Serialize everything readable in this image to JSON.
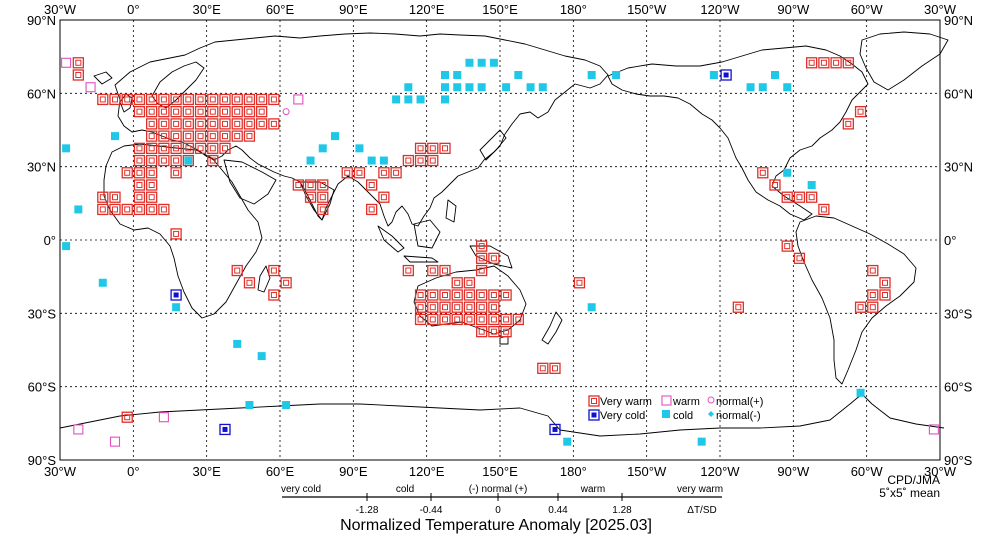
{
  "map": {
    "credit": "CPD/JMA",
    "resolution": "5˚x5˚ mean",
    "top_lon_labels": [
      "30°W",
      "0°",
      "30°E",
      "60°E",
      "90°E",
      "120°E",
      "150°E",
      "180°",
      "150°W",
      "120°W",
      "90°W",
      "60°W",
      "30°W"
    ],
    "bottom_lon_labels": [
      "30°W",
      "0°",
      "30°E",
      "60°E",
      "90°E",
      "120°E",
      "150°E",
      "180°",
      "150°W",
      "120°W",
      "90°W",
      "60°W",
      "30°W"
    ],
    "lat_labels": [
      "90°N",
      "60°N",
      "30°N",
      "0°",
      "30°S",
      "60°S",
      "90°S"
    ]
  },
  "legend": {
    "items": [
      {
        "key": "very_warm",
        "label": "Very warm",
        "color": "#e0302a"
      },
      {
        "key": "warm",
        "label": "warm",
        "color": "#e050c0"
      },
      {
        "key": "normal_plus",
        "label": "normal(+)",
        "color": "#e050c0"
      },
      {
        "key": "very_cold",
        "label": "Very cold",
        "color": "#1010d0"
      },
      {
        "key": "cold",
        "label": "cold",
        "color": "#20c8e8"
      },
      {
        "key": "normal_minus",
        "label": "normal(-)",
        "color": "#20c8e8"
      }
    ]
  },
  "scale": {
    "categories": [
      "very cold",
      "cold",
      "(-) normal (+)",
      "warm",
      "very warm"
    ],
    "ticks": [
      "-1.28",
      "-0.44",
      "0",
      "0.44",
      "1.28"
    ],
    "unit": "ΔT/SD"
  },
  "title": "Normalized Temperature Anomaly [2025.03]",
  "colors": {
    "very_warm": "#e0302a",
    "warm": "#e050c0",
    "cold": "#20c8e8",
    "very_cold": "#1010d0",
    "coast": "#000000",
    "grid": "#000000"
  },
  "chart_data": {
    "type": "map",
    "grid": "5x5 degree",
    "symbol_grid_note": "Each entry: [longitude_center, latitude_center, category]. Categories: VW=very warm, W=warm, N+=normal(+), C=cold, VC=very cold, N-=normal(-).",
    "points": [
      [
        -22.5,
        72.5,
        "VW"
      ],
      [
        -22.5,
        67.5,
        "VW"
      ],
      [
        -17.5,
        62.5,
        "W"
      ],
      [
        -12.5,
        57.5,
        "VW"
      ],
      [
        -7.5,
        57.5,
        "VW"
      ],
      [
        -2.5,
        57.5,
        "VW"
      ],
      [
        2.5,
        57.5,
        "VW"
      ],
      [
        7.5,
        57.5,
        "VW"
      ],
      [
        12.5,
        57.5,
        "VW"
      ],
      [
        17.5,
        57.5,
        "VW"
      ],
      [
        22.5,
        57.5,
        "VW"
      ],
      [
        27.5,
        57.5,
        "VW"
      ],
      [
        32.5,
        57.5,
        "VW"
      ],
      [
        37.5,
        57.5,
        "VW"
      ],
      [
        42.5,
        57.5,
        "VW"
      ],
      [
        47.5,
        57.5,
        "VW"
      ],
      [
        52.5,
        57.5,
        "VW"
      ],
      [
        57.5,
        57.5,
        "VW"
      ],
      [
        2.5,
        52.5,
        "VW"
      ],
      [
        7.5,
        52.5,
        "VW"
      ],
      [
        12.5,
        52.5,
        "VW"
      ],
      [
        17.5,
        52.5,
        "VW"
      ],
      [
        22.5,
        52.5,
        "VW"
      ],
      [
        27.5,
        52.5,
        "VW"
      ],
      [
        32.5,
        52.5,
        "VW"
      ],
      [
        37.5,
        52.5,
        "VW"
      ],
      [
        42.5,
        52.5,
        "VW"
      ],
      [
        47.5,
        52.5,
        "VW"
      ],
      [
        52.5,
        52.5,
        "VW"
      ],
      [
        7.5,
        47.5,
        "VW"
      ],
      [
        12.5,
        47.5,
        "VW"
      ],
      [
        17.5,
        47.5,
        "VW"
      ],
      [
        22.5,
        47.5,
        "VW"
      ],
      [
        27.5,
        47.5,
        "VW"
      ],
      [
        32.5,
        47.5,
        "VW"
      ],
      [
        37.5,
        47.5,
        "VW"
      ],
      [
        42.5,
        47.5,
        "VW"
      ],
      [
        47.5,
        47.5,
        "VW"
      ],
      [
        52.5,
        47.5,
        "VW"
      ],
      [
        57.5,
        47.5,
        "VW"
      ],
      [
        7.5,
        42.5,
        "VW"
      ],
      [
        12.5,
        42.5,
        "VW"
      ],
      [
        17.5,
        42.5,
        "VW"
      ],
      [
        22.5,
        42.5,
        "VW"
      ],
      [
        27.5,
        42.5,
        "VW"
      ],
      [
        32.5,
        42.5,
        "VW"
      ],
      [
        37.5,
        42.5,
        "VW"
      ],
      [
        42.5,
        42.5,
        "VW"
      ],
      [
        47.5,
        42.5,
        "VW"
      ],
      [
        2.5,
        37.5,
        "VW"
      ],
      [
        7.5,
        37.5,
        "VW"
      ],
      [
        12.5,
        37.5,
        "VW"
      ],
      [
        17.5,
        37.5,
        "VW"
      ],
      [
        22.5,
        37.5,
        "VW"
      ],
      [
        27.5,
        37.5,
        "VW"
      ],
      [
        32.5,
        37.5,
        "VW"
      ],
      [
        37.5,
        37.5,
        "VW"
      ],
      [
        2.5,
        32.5,
        "VW"
      ],
      [
        7.5,
        32.5,
        "VW"
      ],
      [
        12.5,
        32.5,
        "VW"
      ],
      [
        17.5,
        32.5,
        "VW"
      ],
      [
        22.5,
        32.5,
        "VW"
      ],
      [
        32.5,
        32.5,
        "VW"
      ],
      [
        -2.5,
        27.5,
        "VW"
      ],
      [
        2.5,
        27.5,
        "VW"
      ],
      [
        7.5,
        27.5,
        "VW"
      ],
      [
        17.5,
        27.5,
        "VW"
      ],
      [
        2.5,
        22.5,
        "VW"
      ],
      [
        7.5,
        22.5,
        "VW"
      ],
      [
        67.5,
        22.5,
        "VW"
      ],
      [
        72.5,
        22.5,
        "VW"
      ],
      [
        77.5,
        22.5,
        "VW"
      ],
      [
        -12.5,
        17.5,
        "VW"
      ],
      [
        -7.5,
        17.5,
        "VW"
      ],
      [
        2.5,
        17.5,
        "VW"
      ],
      [
        7.5,
        17.5,
        "VW"
      ],
      [
        72.5,
        17.5,
        "VW"
      ],
      [
        77.5,
        17.5,
        "VW"
      ],
      [
        -12.5,
        12.5,
        "VW"
      ],
      [
        -7.5,
        12.5,
        "VW"
      ],
      [
        -2.5,
        12.5,
        "VW"
      ],
      [
        2.5,
        12.5,
        "VW"
      ],
      [
        7.5,
        12.5,
        "VW"
      ],
      [
        12.5,
        12.5,
        "VW"
      ],
      [
        77.5,
        12.5,
        "VW"
      ],
      [
        17.5,
        2.5,
        "VW"
      ],
      [
        42.5,
        -12.5,
        "VW"
      ],
      [
        47.5,
        -17.5,
        "VW"
      ],
      [
        57.5,
        -12.5,
        "VW"
      ],
      [
        62.5,
        -17.5,
        "VW"
      ],
      [
        57.5,
        -22.5,
        "VW"
      ],
      [
        102.5,
        27.5,
        "VW"
      ],
      [
        107.5,
        27.5,
        "VW"
      ],
      [
        112.5,
        32.5,
        "VW"
      ],
      [
        117.5,
        32.5,
        "VW"
      ],
      [
        122.5,
        32.5,
        "VW"
      ],
      [
        117.5,
        37.5,
        "VW"
      ],
      [
        122.5,
        37.5,
        "VW"
      ],
      [
        127.5,
        37.5,
        "VW"
      ],
      [
        87.5,
        27.5,
        "VW"
      ],
      [
        92.5,
        27.5,
        "VW"
      ],
      [
        97.5,
        22.5,
        "VW"
      ],
      [
        102.5,
        17.5,
        "VW"
      ],
      [
        97.5,
        12.5,
        "VW"
      ],
      [
        142.5,
        -2.5,
        "VW"
      ],
      [
        142.5,
        -7.5,
        "VW"
      ],
      [
        147.5,
        -7.5,
        "VW"
      ],
      [
        142.5,
        -12.5,
        "VW"
      ],
      [
        112.5,
        -12.5,
        "VW"
      ],
      [
        122.5,
        -12.5,
        "VW"
      ],
      [
        127.5,
        -12.5,
        "VW"
      ],
      [
        132.5,
        -17.5,
        "VW"
      ],
      [
        137.5,
        -17.5,
        "VW"
      ],
      [
        117.5,
        -22.5,
        "VW"
      ],
      [
        122.5,
        -22.5,
        "VW"
      ],
      [
        127.5,
        -22.5,
        "VW"
      ],
      [
        132.5,
        -22.5,
        "VW"
      ],
      [
        137.5,
        -22.5,
        "VW"
      ],
      [
        142.5,
        -22.5,
        "VW"
      ],
      [
        147.5,
        -22.5,
        "VW"
      ],
      [
        152.5,
        -22.5,
        "VW"
      ],
      [
        117.5,
        -27.5,
        "VW"
      ],
      [
        122.5,
        -27.5,
        "VW"
      ],
      [
        127.5,
        -27.5,
        "VW"
      ],
      [
        132.5,
        -27.5,
        "VW"
      ],
      [
        137.5,
        -27.5,
        "VW"
      ],
      [
        142.5,
        -27.5,
        "VW"
      ],
      [
        147.5,
        -27.5,
        "VW"
      ],
      [
        117.5,
        -32.5,
        "VW"
      ],
      [
        122.5,
        -32.5,
        "VW"
      ],
      [
        127.5,
        -32.5,
        "VW"
      ],
      [
        132.5,
        -32.5,
        "VW"
      ],
      [
        137.5,
        -32.5,
        "VW"
      ],
      [
        142.5,
        -32.5,
        "VW"
      ],
      [
        147.5,
        -32.5,
        "VW"
      ],
      [
        152.5,
        -32.5,
        "VW"
      ],
      [
        157.5,
        -32.5,
        "VW"
      ],
      [
        142.5,
        -37.5,
        "VW"
      ],
      [
        147.5,
        -37.5,
        "VW"
      ],
      [
        152.5,
        -37.5,
        "VW"
      ],
      [
        167.5,
        -52.5,
        "VW"
      ],
      [
        172.5,
        -52.5,
        "VW"
      ],
      [
        182.5,
        -17.5,
        "VW"
      ],
      [
        -27.5,
        72.5,
        "W"
      ],
      [
        -62.5,
        52.5,
        "VW"
      ],
      [
        -67.5,
        47.5,
        "VW"
      ],
      [
        -77.5,
        72.5,
        "VW"
      ],
      [
        -72.5,
        72.5,
        "VW"
      ],
      [
        -67.5,
        72.5,
        "VW"
      ],
      [
        -82.5,
        72.5,
        "VW"
      ],
      [
        -87.5,
        17.5,
        "VW"
      ],
      [
        -92.5,
        17.5,
        "VW"
      ],
      [
        -82.5,
        17.5,
        "VW"
      ],
      [
        -97.5,
        22.5,
        "VW"
      ],
      [
        -102.5,
        27.5,
        "VW"
      ],
      [
        -77.5,
        12.5,
        "VW"
      ],
      [
        -92.5,
        -2.5,
        "VW"
      ],
      [
        -87.5,
        -7.5,
        "VW"
      ],
      [
        -57.5,
        -12.5,
        "VW"
      ],
      [
        -52.5,
        -17.5,
        "VW"
      ],
      [
        -57.5,
        -22.5,
        "VW"
      ],
      [
        -52.5,
        -22.5,
        "VW"
      ],
      [
        -62.5,
        -27.5,
        "VW"
      ],
      [
        -57.5,
        -27.5,
        "VW"
      ],
      [
        -112.5,
        -27.5,
        "VW"
      ],
      [
        -2.5,
        -72.5,
        "VW"
      ],
      [
        37.5,
        -77.5,
        "VC"
      ],
      [
        172.5,
        -77.5,
        "VC"
      ],
      [
        17.5,
        -22.5,
        "VC"
      ],
      [
        -117.5,
        67.5,
        "VC"
      ],
      [
        127.5,
        67.5,
        "C"
      ],
      [
        132.5,
        67.5,
        "C"
      ],
      [
        137.5,
        72.5,
        "C"
      ],
      [
        142.5,
        72.5,
        "C"
      ],
      [
        147.5,
        72.5,
        "C"
      ],
      [
        157.5,
        67.5,
        "C"
      ],
      [
        167.5,
        62.5,
        "C"
      ],
      [
        127.5,
        62.5,
        "C"
      ],
      [
        132.5,
        62.5,
        "C"
      ],
      [
        137.5,
        62.5,
        "C"
      ],
      [
        142.5,
        62.5,
        "C"
      ],
      [
        152.5,
        62.5,
        "C"
      ],
      [
        162.5,
        62.5,
        "C"
      ],
      [
        112.5,
        62.5,
        "C"
      ],
      [
        107.5,
        57.5,
        "C"
      ],
      [
        112.5,
        57.5,
        "C"
      ],
      [
        117.5,
        57.5,
        "C"
      ],
      [
        127.5,
        57.5,
        "C"
      ],
      [
        187.5,
        67.5,
        "C"
      ],
      [
        197.5,
        67.5,
        "C"
      ],
      [
        -122.5,
        67.5,
        "C"
      ],
      [
        -107.5,
        62.5,
        "C"
      ],
      [
        -102.5,
        62.5,
        "C"
      ],
      [
        -97.5,
        67.5,
        "C"
      ],
      [
        -92.5,
        62.5,
        "C"
      ],
      [
        -27.5,
        37.5,
        "C"
      ],
      [
        -22.5,
        12.5,
        "C"
      ],
      [
        -12.5,
        -17.5,
        "C"
      ],
      [
        -27.5,
        -2.5,
        "C"
      ],
      [
        22.5,
        32.5,
        "C"
      ],
      [
        72.5,
        32.5,
        "C"
      ],
      [
        97.5,
        32.5,
        "C"
      ],
      [
        77.5,
        37.5,
        "C"
      ],
      [
        82.5,
        42.5,
        "C"
      ],
      [
        17.5,
        -27.5,
        "C"
      ],
      [
        42.5,
        -42.5,
        "C"
      ],
      [
        92.5,
        37.5,
        "C"
      ],
      [
        102.5,
        32.5,
        "C"
      ],
      [
        52.5,
        -47.5,
        "C"
      ],
      [
        -7.5,
        42.5,
        "C"
      ],
      [
        -82.5,
        22.5,
        "C"
      ],
      [
        -92.5,
        27.5,
        "C"
      ],
      [
        187.5,
        -27.5,
        "C"
      ],
      [
        177.5,
        -82.5,
        "C"
      ],
      [
        232.5,
        -82.5,
        "C"
      ],
      [
        47.5,
        -67.5,
        "C"
      ],
      [
        62.5,
        -67.5,
        "C"
      ],
      [
        -62.5,
        -62.5,
        "C"
      ],
      [
        62.5,
        52.5,
        "N+"
      ],
      [
        67.5,
        57.5,
        "W"
      ],
      [
        -7.5,
        -82.5,
        "W"
      ],
      [
        12.5,
        -72.5,
        "W"
      ],
      [
        -22.5,
        -77.5,
        "W"
      ],
      [
        -32.5,
        -77.5,
        "W"
      ]
    ]
  }
}
